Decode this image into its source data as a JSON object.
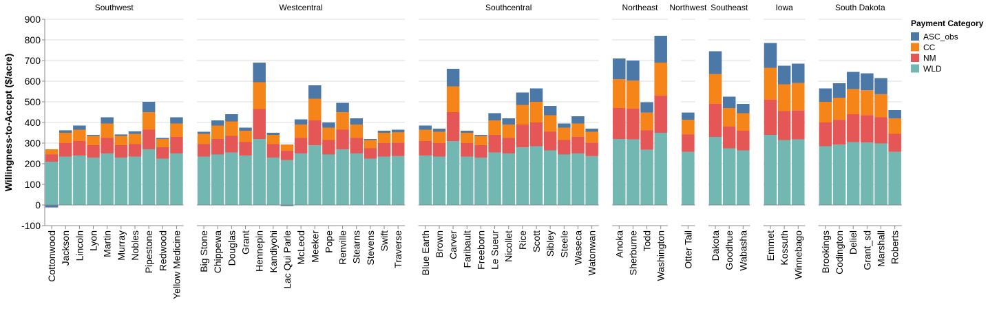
{
  "chart_data": {
    "type": "bar",
    "stacked": true,
    "ylabel": "Willingness-to-Accept ($/acre)",
    "ylim": [
      -100,
      900
    ],
    "yticks": [
      -100,
      0,
      100,
      200,
      300,
      400,
      500,
      600,
      700,
      800,
      900
    ],
    "grid": true,
    "legend": {
      "title": "Payment Category",
      "placement": "right",
      "items": [
        {
          "name": "ASC_obs",
          "color": "#4c78a8"
        },
        {
          "name": "CC",
          "color": "#f58518"
        },
        {
          "name": "NM",
          "color": "#e45756"
        },
        {
          "name": "WLD",
          "color": "#72b7b2"
        }
      ]
    },
    "stack_order": [
      "WLD",
      "NM",
      "CC",
      "ASC_obs"
    ],
    "facets": [
      {
        "region": "Southwest",
        "counties": [
          {
            "name": "Cottonwood",
            "WLD": 210,
            "NM": 35,
            "CC": 25,
            "ASC_obs": -12
          },
          {
            "name": "Jackson",
            "WLD": 235,
            "NM": 65,
            "CC": 50,
            "ASC_obs": 12
          },
          {
            "name": "Lincoln",
            "WLD": 240,
            "NM": 70,
            "CC": 55,
            "ASC_obs": 20
          },
          {
            "name": "Lyon",
            "WLD": 230,
            "NM": 60,
            "CC": 45,
            "ASC_obs": 5
          },
          {
            "name": "Martin",
            "WLD": 250,
            "NM": 75,
            "CC": 70,
            "ASC_obs": 30
          },
          {
            "name": "Murray",
            "WLD": 230,
            "NM": 60,
            "CC": 45,
            "ASC_obs": 7
          },
          {
            "name": "Nobles",
            "WLD": 235,
            "NM": 60,
            "CC": 50,
            "ASC_obs": 12
          },
          {
            "name": "Pipestone",
            "WLD": 270,
            "NM": 95,
            "CC": 85,
            "ASC_obs": 50
          },
          {
            "name": "Redwood",
            "WLD": 225,
            "NM": 55,
            "CC": 40,
            "ASC_obs": 5
          },
          {
            "name": "Yellow Medicine",
            "WLD": 250,
            "NM": 80,
            "CC": 65,
            "ASC_obs": 30
          }
        ]
      },
      {
        "region": "Westcentral",
        "counties": [
          {
            "name": "Big Stone",
            "WLD": 235,
            "NM": 60,
            "CC": 50,
            "ASC_obs": 10
          },
          {
            "name": "Chippewa",
            "WLD": 245,
            "NM": 75,
            "CC": 65,
            "ASC_obs": 25
          },
          {
            "name": "Douglas",
            "WLD": 255,
            "NM": 80,
            "CC": 70,
            "ASC_obs": 35
          },
          {
            "name": "Grant",
            "WLD": 240,
            "NM": 65,
            "CC": 55,
            "ASC_obs": 15
          },
          {
            "name": "Hennepin",
            "WLD": 320,
            "NM": 145,
            "CC": 130,
            "ASC_obs": 95
          },
          {
            "name": "Kandiyohi",
            "WLD": 230,
            "NM": 65,
            "CC": 45,
            "ASC_obs": 10
          },
          {
            "name": "Lac Qui Parle",
            "WLD": 218,
            "NM": 45,
            "CC": 30,
            "ASC_obs": -5
          },
          {
            "name": "McLeod",
            "WLD": 250,
            "NM": 75,
            "CC": 65,
            "ASC_obs": 25
          },
          {
            "name": "Meeker",
            "WLD": 290,
            "NM": 120,
            "CC": 105,
            "ASC_obs": 65
          },
          {
            "name": "Pope",
            "WLD": 245,
            "NM": 70,
            "CC": 60,
            "ASC_obs": 25
          },
          {
            "name": "Renville",
            "WLD": 270,
            "NM": 95,
            "CC": 85,
            "ASC_obs": 45
          },
          {
            "name": "Stearns",
            "WLD": 250,
            "NM": 75,
            "CC": 65,
            "ASC_obs": 30
          },
          {
            "name": "Stevens",
            "WLD": 225,
            "NM": 50,
            "CC": 40,
            "ASC_obs": 5
          },
          {
            "name": "Swift",
            "WLD": 235,
            "NM": 65,
            "CC": 50,
            "ASC_obs": 10
          },
          {
            "name": "Traverse",
            "WLD": 237,
            "NM": 65,
            "CC": 50,
            "ASC_obs": 13
          }
        ]
      },
      {
        "region": "Southcentral",
        "counties": [
          {
            "name": "Blue Earth",
            "WLD": 240,
            "NM": 70,
            "CC": 55,
            "ASC_obs": 20
          },
          {
            "name": "Brown",
            "WLD": 235,
            "NM": 65,
            "CC": 55,
            "ASC_obs": 15
          },
          {
            "name": "Carver",
            "WLD": 310,
            "NM": 140,
            "CC": 125,
            "ASC_obs": 85
          },
          {
            "name": "Faribault",
            "WLD": 235,
            "NM": 65,
            "CC": 50,
            "ASC_obs": 10
          },
          {
            "name": "Freeborn",
            "WLD": 230,
            "NM": 60,
            "CC": 45,
            "ASC_obs": 5
          },
          {
            "name": "Le Sueur",
            "WLD": 255,
            "NM": 85,
            "CC": 70,
            "ASC_obs": 35
          },
          {
            "name": "Nicollet",
            "WLD": 250,
            "NM": 75,
            "CC": 65,
            "ASC_obs": 30
          },
          {
            "name": "Rice",
            "WLD": 280,
            "NM": 110,
            "CC": 95,
            "ASC_obs": 60
          },
          {
            "name": "Scott",
            "WLD": 285,
            "NM": 115,
            "CC": 100,
            "ASC_obs": 65
          },
          {
            "name": "Sibley",
            "WLD": 265,
            "NM": 90,
            "CC": 80,
            "ASC_obs": 45
          },
          {
            "name": "Steele",
            "WLD": 245,
            "NM": 70,
            "CC": 60,
            "ASC_obs": 20
          },
          {
            "name": "Waseca",
            "WLD": 250,
            "NM": 80,
            "CC": 65,
            "ASC_obs": 35
          },
          {
            "name": "Watonwan",
            "WLD": 237,
            "NM": 65,
            "CC": 53,
            "ASC_obs": 15
          }
        ]
      },
      {
        "region": "Northeast",
        "counties": [
          {
            "name": "Anoka",
            "WLD": 320,
            "NM": 150,
            "CC": 140,
            "ASC_obs": 100
          },
          {
            "name": "Sherburne",
            "WLD": 318,
            "NM": 150,
            "CC": 135,
            "ASC_obs": 97
          },
          {
            "name": "Todd",
            "WLD": 268,
            "NM": 95,
            "CC": 85,
            "ASC_obs": 50
          },
          {
            "name": "Washington",
            "WLD": 350,
            "NM": 180,
            "CC": 160,
            "ASC_obs": 130
          }
        ]
      },
      {
        "region": "Northwest",
        "counties": [
          {
            "name": "Otter Tail",
            "WLD": 258,
            "NM": 85,
            "CC": 70,
            "ASC_obs": 35
          }
        ]
      },
      {
        "region": "Southeast",
        "counties": [
          {
            "name": "Dakota",
            "WLD": 330,
            "NM": 160,
            "CC": 145,
            "ASC_obs": 110
          },
          {
            "name": "Goodhue",
            "WLD": 275,
            "NM": 105,
            "CC": 90,
            "ASC_obs": 55
          },
          {
            "name": "Wabasha",
            "WLD": 265,
            "NM": 95,
            "CC": 85,
            "ASC_obs": 45
          }
        ]
      },
      {
        "region": "Iowa",
        "counties": [
          {
            "name": "Emmet",
            "WLD": 340,
            "NM": 170,
            "CC": 155,
            "ASC_obs": 120
          },
          {
            "name": "Kossuth",
            "WLD": 315,
            "NM": 140,
            "CC": 130,
            "ASC_obs": 90
          },
          {
            "name": "Winnebago",
            "WLD": 318,
            "NM": 140,
            "CC": 133,
            "ASC_obs": 94
          }
        ]
      },
      {
        "region": "South Dakota",
        "counties": [
          {
            "name": "Brookings",
            "WLD": 285,
            "NM": 115,
            "CC": 100,
            "ASC_obs": 65
          },
          {
            "name": "Codington",
            "WLD": 293,
            "NM": 120,
            "CC": 107,
            "ASC_obs": 70
          },
          {
            "name": "Deliel",
            "WLD": 305,
            "NM": 135,
            "CC": 122,
            "ASC_obs": 83
          },
          {
            "name": "Grant_sd",
            "WLD": 303,
            "NM": 133,
            "CC": 120,
            "ASC_obs": 82
          },
          {
            "name": "Marshall",
            "WLD": 298,
            "NM": 127,
            "CC": 112,
            "ASC_obs": 78
          },
          {
            "name": "Roberts",
            "WLD": 258,
            "NM": 87,
            "CC": 75,
            "ASC_obs": 40
          }
        ]
      }
    ]
  }
}
